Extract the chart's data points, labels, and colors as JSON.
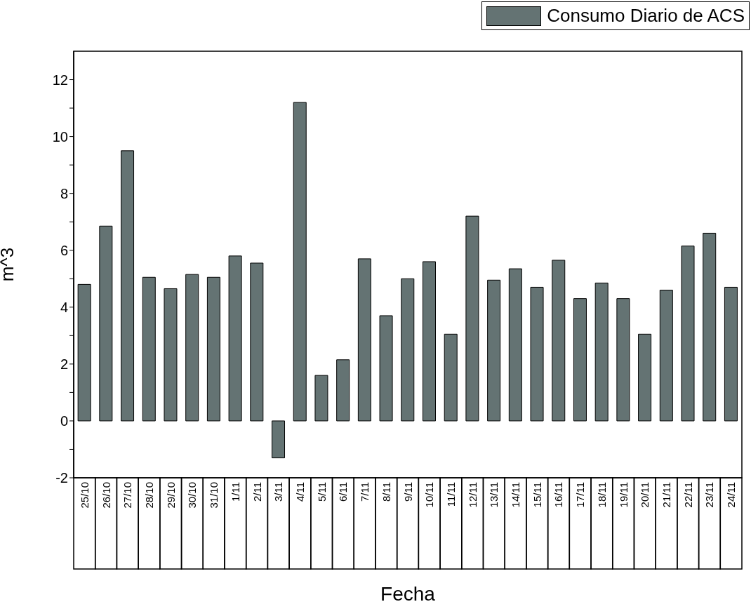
{
  "chart_data": {
    "type": "bar",
    "xlabel": "Fecha",
    "ylabel": "m^3",
    "categories": [
      "25/10",
      "26/10",
      "27/10",
      "28/10",
      "29/10",
      "30/10",
      "31/10",
      "1/11",
      "2/11",
      "3/11",
      "4/11",
      "5/11",
      "6/11",
      "7/11",
      "8/11",
      "9/11",
      "10/11",
      "11/11",
      "12/11",
      "13/11",
      "14/11",
      "15/11",
      "16/11",
      "17/11",
      "18/11",
      "19/11",
      "20/11",
      "21/11",
      "22/11",
      "23/11",
      "24/11"
    ],
    "series": [
      {
        "name": "Consumo Diario de ACS",
        "color": "#647373",
        "values": [
          4.8,
          6.85,
          9.5,
          5.05,
          4.65,
          5.15,
          5.05,
          5.8,
          5.55,
          -1.3,
          11.2,
          1.6,
          2.15,
          5.7,
          3.7,
          5.0,
          5.6,
          3.05,
          7.2,
          4.95,
          5.35,
          4.7,
          5.65,
          4.3,
          4.85,
          4.3,
          3.05,
          4.6,
          6.15,
          6.6,
          4.7
        ]
      }
    ],
    "ylim": [
      -2,
      13
    ],
    "yticks": [
      -2,
      {
        "value": -1,
        "label": null
      },
      0,
      {
        "value": 1,
        "label": null
      },
      2,
      {
        "value": 3,
        "label": null
      },
      4,
      {
        "value": 5,
        "label": null
      },
      6,
      {
        "value": 7,
        "label": null
      },
      8,
      {
        "value": 9,
        "label": null
      },
      10,
      {
        "value": 11,
        "label": null
      },
      12
    ],
    "grid": false,
    "legend": "top right"
  }
}
